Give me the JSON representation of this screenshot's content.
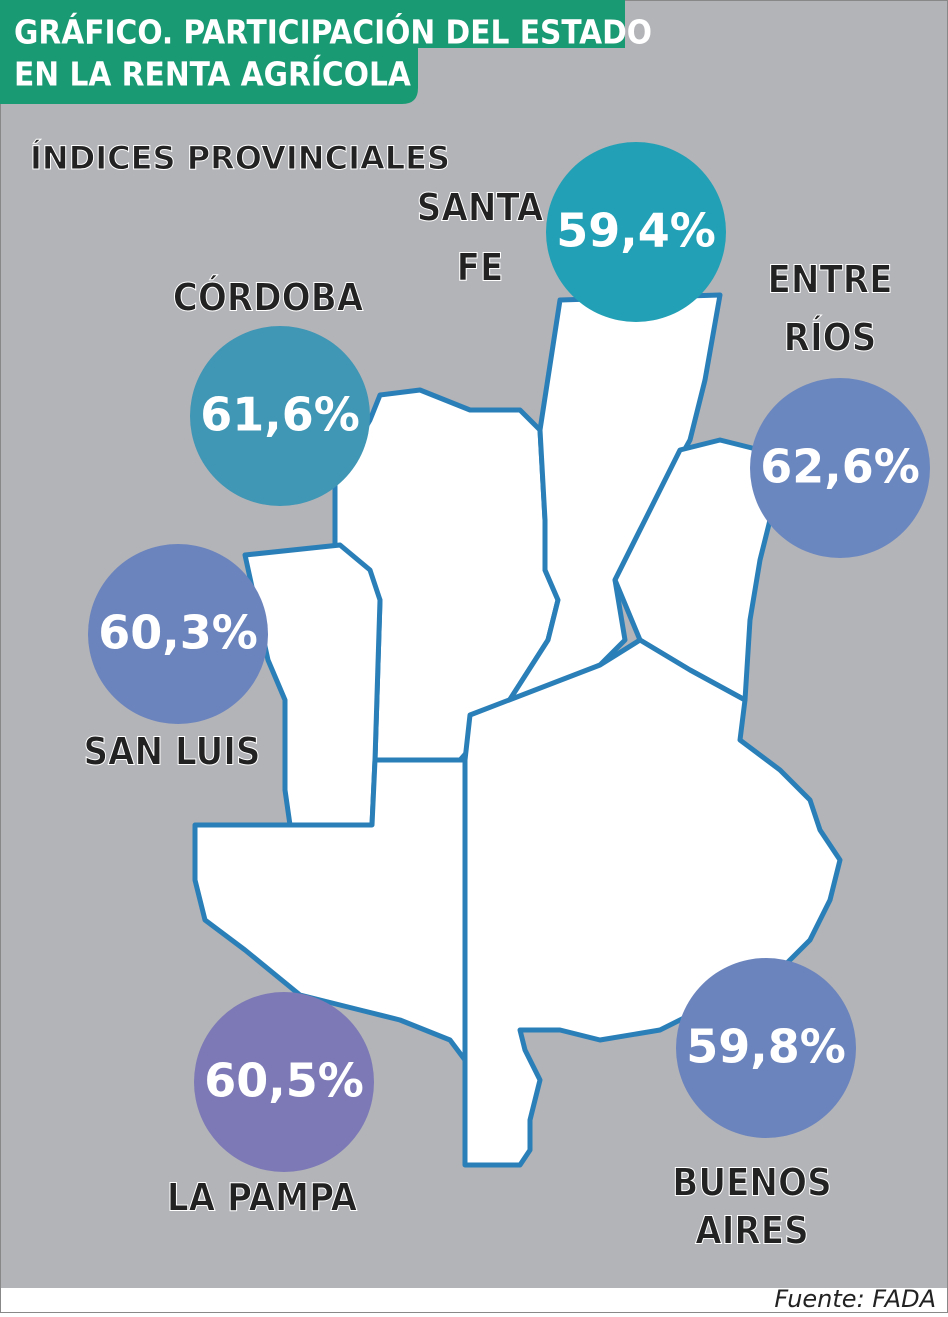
{
  "header": {
    "title_lines": [
      "GRÁFICO. PARTICIPACIÓN DEL ESTADO",
      "EN LA RENTA AGRÍCOLA"
    ]
  },
  "subtitle": "ÍNDICES PROVINCIALES",
  "provinces": [
    {
      "name_lines": [
        "SANTA",
        "FE"
      ],
      "value_label": "59,4%"
    },
    {
      "name_lines": [
        "CÓRDOBA"
      ],
      "value_label": "61,6%"
    },
    {
      "name_lines": [
        "ENTRE",
        "RÍOS"
      ],
      "value_label": "62,6%"
    },
    {
      "name_lines": [
        "SAN LUIS"
      ],
      "value_label": "60,3%"
    },
    {
      "name_lines": [
        "LA PAMPA"
      ],
      "value_label": "60,5%"
    },
    {
      "name_lines": [
        "BUENOS",
        "AIRES"
      ],
      "value_label": "59,8%"
    }
  ],
  "source": "Fuente: FADA"
}
